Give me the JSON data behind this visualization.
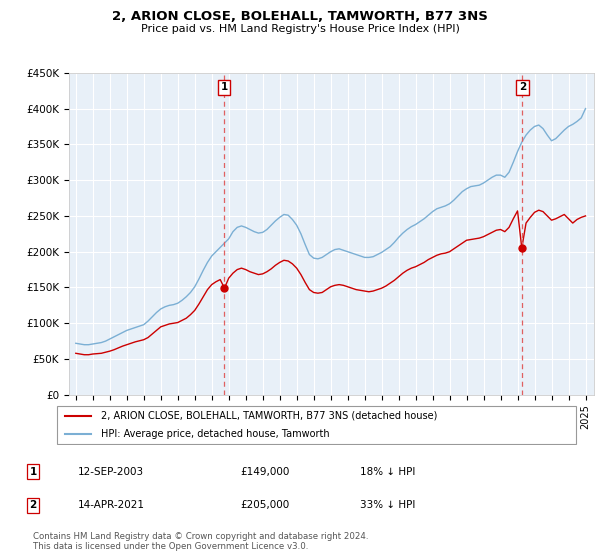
{
  "title": "2, ARION CLOSE, BOLEHALL, TAMWORTH, B77 3NS",
  "subtitle": "Price paid vs. HM Land Registry's House Price Index (HPI)",
  "hpi_color": "#7bafd4",
  "price_color": "#cc0000",
  "marker_color": "#cc0000",
  "vline_color": "#e06060",
  "plot_bg": "#e8f0f8",
  "ylim": [
    0,
    450000
  ],
  "yticks": [
    0,
    50000,
    100000,
    150000,
    200000,
    250000,
    300000,
    350000,
    400000,
    450000
  ],
  "ytick_labels": [
    "£0",
    "£50K",
    "£100K",
    "£150K",
    "£200K",
    "£250K",
    "£300K",
    "£350K",
    "£400K",
    "£450K"
  ],
  "xlim_start": 1994.6,
  "xlim_end": 2025.5,
  "sale1_x": 2003.72,
  "sale1_y": 149000,
  "sale1_label": "1",
  "sale1_date": "12-SEP-2003",
  "sale1_price": "£149,000",
  "sale1_hpi": "18% ↓ HPI",
  "sale2_x": 2021.28,
  "sale2_y": 205000,
  "sale2_label": "2",
  "sale2_date": "14-APR-2021",
  "sale2_price": "£205,000",
  "sale2_hpi": "33% ↓ HPI",
  "legend_line1": "2, ARION CLOSE, BOLEHALL, TAMWORTH, B77 3NS (detached house)",
  "legend_line2": "HPI: Average price, detached house, Tamworth",
  "footnote": "Contains HM Land Registry data © Crown copyright and database right 2024.\nThis data is licensed under the Open Government Licence v3.0.",
  "hpi_data_x": [
    1995.0,
    1995.25,
    1995.5,
    1995.75,
    1996.0,
    1996.25,
    1996.5,
    1996.75,
    1997.0,
    1997.25,
    1997.5,
    1997.75,
    1998.0,
    1998.25,
    1998.5,
    1998.75,
    1999.0,
    1999.25,
    1999.5,
    1999.75,
    2000.0,
    2000.25,
    2000.5,
    2000.75,
    2001.0,
    2001.25,
    2001.5,
    2001.75,
    2002.0,
    2002.25,
    2002.5,
    2002.75,
    2003.0,
    2003.25,
    2003.5,
    2003.75,
    2004.0,
    2004.25,
    2004.5,
    2004.75,
    2005.0,
    2005.25,
    2005.5,
    2005.75,
    2006.0,
    2006.25,
    2006.5,
    2006.75,
    2007.0,
    2007.25,
    2007.5,
    2007.75,
    2008.0,
    2008.25,
    2008.5,
    2008.75,
    2009.0,
    2009.25,
    2009.5,
    2009.75,
    2010.0,
    2010.25,
    2010.5,
    2010.75,
    2011.0,
    2011.25,
    2011.5,
    2011.75,
    2012.0,
    2012.25,
    2012.5,
    2012.75,
    2013.0,
    2013.25,
    2013.5,
    2013.75,
    2014.0,
    2014.25,
    2014.5,
    2014.75,
    2015.0,
    2015.25,
    2015.5,
    2015.75,
    2016.0,
    2016.25,
    2016.5,
    2016.75,
    2017.0,
    2017.25,
    2017.5,
    2017.75,
    2018.0,
    2018.25,
    2018.5,
    2018.75,
    2019.0,
    2019.25,
    2019.5,
    2019.75,
    2020.0,
    2020.25,
    2020.5,
    2020.75,
    2021.0,
    2021.25,
    2021.5,
    2021.75,
    2022.0,
    2022.25,
    2022.5,
    2022.75,
    2023.0,
    2023.25,
    2023.5,
    2023.75,
    2024.0,
    2024.25,
    2024.5,
    2024.75,
    2025.0
  ],
  "hpi_data_y": [
    72000,
    71000,
    70000,
    70000,
    71000,
    72000,
    73000,
    75000,
    78000,
    81000,
    84000,
    87000,
    90000,
    92000,
    94000,
    96000,
    98000,
    103000,
    109000,
    115000,
    120000,
    123000,
    125000,
    126000,
    128000,
    132000,
    137000,
    143000,
    151000,
    162000,
    174000,
    185000,
    194000,
    200000,
    206000,
    212000,
    218000,
    228000,
    234000,
    236000,
    234000,
    231000,
    228000,
    226000,
    227000,
    231000,
    237000,
    243000,
    248000,
    252000,
    251000,
    245000,
    237000,
    225000,
    210000,
    196000,
    191000,
    190000,
    192000,
    196000,
    200000,
    203000,
    204000,
    202000,
    200000,
    198000,
    196000,
    194000,
    192000,
    192000,
    193000,
    196000,
    199000,
    203000,
    207000,
    213000,
    220000,
    226000,
    231000,
    235000,
    238000,
    242000,
    246000,
    251000,
    256000,
    260000,
    262000,
    264000,
    267000,
    272000,
    278000,
    284000,
    288000,
    291000,
    292000,
    293000,
    296000,
    300000,
    304000,
    307000,
    307000,
    304000,
    311000,
    325000,
    340000,
    353000,
    363000,
    370000,
    375000,
    377000,
    372000,
    363000,
    355000,
    358000,
    364000,
    370000,
    375000,
    378000,
    382000,
    387000,
    400000
  ],
  "price_data_x": [
    1995.0,
    1995.25,
    1995.5,
    1995.75,
    1996.0,
    1996.25,
    1996.5,
    1996.75,
    1997.0,
    1997.25,
    1997.5,
    1997.75,
    1998.0,
    1998.25,
    1998.5,
    1998.75,
    1999.0,
    1999.25,
    1999.5,
    1999.75,
    2000.0,
    2000.25,
    2000.5,
    2000.75,
    2001.0,
    2001.25,
    2001.5,
    2001.75,
    2002.0,
    2002.25,
    2002.5,
    2002.75,
    2003.0,
    2003.25,
    2003.5,
    2003.75,
    2004.0,
    2004.25,
    2004.5,
    2004.75,
    2005.0,
    2005.25,
    2005.5,
    2005.75,
    2006.0,
    2006.25,
    2006.5,
    2006.75,
    2007.0,
    2007.25,
    2007.5,
    2007.75,
    2008.0,
    2008.25,
    2008.5,
    2008.75,
    2009.0,
    2009.25,
    2009.5,
    2009.75,
    2010.0,
    2010.25,
    2010.5,
    2010.75,
    2011.0,
    2011.25,
    2011.5,
    2011.75,
    2012.0,
    2012.25,
    2012.5,
    2012.75,
    2013.0,
    2013.25,
    2013.5,
    2013.75,
    2014.0,
    2014.25,
    2014.5,
    2014.75,
    2015.0,
    2015.25,
    2015.5,
    2015.75,
    2016.0,
    2016.25,
    2016.5,
    2016.75,
    2017.0,
    2017.25,
    2017.5,
    2017.75,
    2018.0,
    2018.25,
    2018.5,
    2018.75,
    2019.0,
    2019.25,
    2019.5,
    2019.75,
    2020.0,
    2020.25,
    2020.5,
    2020.75,
    2021.0,
    2021.25,
    2021.5,
    2021.75,
    2022.0,
    2022.25,
    2022.5,
    2022.75,
    2023.0,
    2023.25,
    2023.5,
    2023.75,
    2024.0,
    2024.25,
    2024.5,
    2024.75,
    2025.0
  ],
  "price_data_y": [
    58000,
    57000,
    56000,
    56000,
    57000,
    57500,
    58000,
    59500,
    61000,
    63000,
    65500,
    68000,
    70000,
    72000,
    74000,
    75500,
    77000,
    80000,
    85000,
    90000,
    95000,
    97000,
    99000,
    100000,
    101000,
    104000,
    107000,
    112000,
    118000,
    127000,
    137000,
    147000,
    154000,
    158000,
    161000,
    149000,
    163000,
    170000,
    175000,
    177000,
    175000,
    172000,
    170000,
    168000,
    169000,
    172000,
    176000,
    181000,
    185000,
    188000,
    187000,
    183000,
    177000,
    168000,
    157000,
    147000,
    143000,
    142000,
    143000,
    147000,
    151000,
    153000,
    154000,
    153000,
    151000,
    149000,
    147000,
    146000,
    145000,
    144000,
    145000,
    147000,
    149000,
    152000,
    156000,
    160000,
    165000,
    170000,
    174000,
    177000,
    179000,
    182000,
    185000,
    189000,
    192000,
    195000,
    197000,
    198000,
    200000,
    204000,
    208000,
    212000,
    216000,
    217000,
    218000,
    219000,
    221000,
    224000,
    227000,
    230000,
    231000,
    228000,
    234000,
    246000,
    257000,
    205000,
    240000,
    248000,
    255000,
    258000,
    256000,
    250000,
    244000,
    246000,
    249000,
    252000,
    246000,
    240000,
    245000,
    248000,
    250000
  ]
}
